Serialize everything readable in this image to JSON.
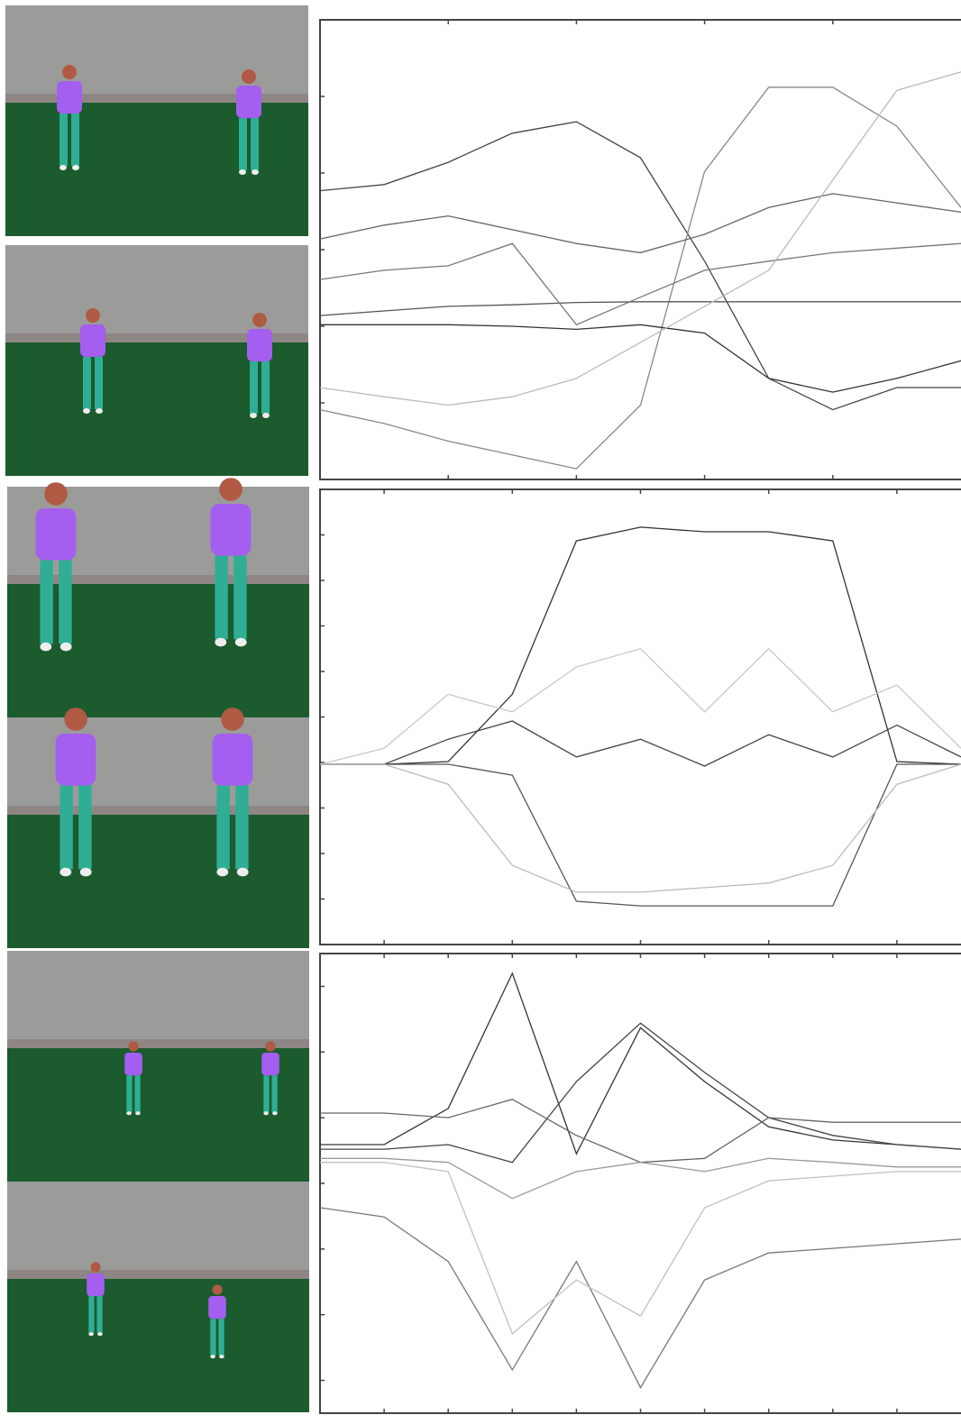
{
  "chart_data": [
    {
      "type": "line",
      "x": [
        0,
        10,
        20,
        30,
        40,
        50,
        60,
        70,
        80,
        90,
        100
      ],
      "xlim": [
        0,
        100
      ],
      "ylim": [
        -3,
        3
      ],
      "xticks": [
        20,
        40,
        60,
        80
      ],
      "yticks": [
        -2,
        -1,
        0,
        1,
        2
      ],
      "series": [
        {
          "color": "#444444",
          "values": [
            0.77,
            0.85,
            1.14,
            1.52,
            1.67,
            1.2,
            -0.15,
            -1.68,
            -2.09,
            -1.8,
            -1.8
          ]
        },
        {
          "color": "#888888",
          "values": [
            -2.09,
            -2.27,
            -2.5,
            -2.68,
            -2.86,
            -2.03,
            1.02,
            2.12,
            2.12,
            1.61,
            0.55
          ]
        },
        {
          "color": "#666666",
          "values": [
            0.14,
            0.32,
            0.44,
            0.26,
            0.08,
            -0.04,
            0.2,
            0.55,
            0.73,
            0.61,
            0.49
          ]
        },
        {
          "color": "#555555",
          "values": [
            -0.86,
            -0.8,
            -0.74,
            -0.72,
            -0.69,
            -0.68,
            -0.68,
            -0.68,
            -0.68,
            -0.68,
            -0.68
          ]
        },
        {
          "color": "#333333",
          "values": [
            -0.98,
            -0.98,
            -0.98,
            -1.0,
            -1.04,
            -0.98,
            -1.09,
            -1.68,
            -1.86,
            -1.68,
            -1.45
          ]
        },
        {
          "color": "#777777",
          "values": [
            -0.39,
            -0.27,
            -0.21,
            0.08,
            -0.98,
            -0.62,
            -0.27,
            -0.15,
            -0.04,
            0.02,
            0.08
          ]
        },
        {
          "color": "#bbbbbb",
          "values": [
            -1.8,
            -1.92,
            -2.03,
            -1.92,
            -1.68,
            -1.21,
            -0.74,
            -0.27,
            0.91,
            2.08,
            2.32
          ]
        }
      ]
    },
    {
      "type": "line",
      "x": [
        0,
        10,
        20,
        30,
        40,
        50,
        60,
        70,
        80,
        90,
        100
      ],
      "xlim": [
        0,
        100
      ],
      "ylim": [
        -5,
        5
      ],
      "xticks": [
        10,
        30,
        50,
        70,
        90
      ],
      "yticks": [
        -4,
        -3,
        -2,
        -1,
        0,
        1,
        2,
        3,
        4
      ],
      "series": [
        {
          "color": "#333333",
          "values": [
            -1.04,
            -1.04,
            -0.98,
            0.5,
            3.87,
            4.17,
            4.07,
            4.07,
            3.87,
            -0.98,
            -1.04
          ]
        },
        {
          "color": "#555555",
          "values": [
            -1.04,
            -1.04,
            -1.04,
            -1.28,
            -4.05,
            -4.15,
            -4.15,
            -4.15,
            -4.15,
            -1.04,
            -1.04
          ]
        },
        {
          "color": "#444444",
          "values": [
            -1.04,
            -1.04,
            -0.49,
            -0.09,
            -0.88,
            -0.49,
            -1.08,
            -0.39,
            -0.88,
            -0.18,
            -0.88
          ]
        },
        {
          "color": "#c8c8c8",
          "values": [
            -1.04,
            -0.69,
            0.5,
            0.11,
            1.1,
            1.5,
            0.11,
            1.5,
            0.11,
            0.7,
            -0.69
          ]
        },
        {
          "color": "#bbbbbb",
          "values": [
            -1.04,
            -1.04,
            -1.48,
            -3.26,
            -3.85,
            -3.85,
            -3.75,
            -3.65,
            -3.26,
            -1.48,
            -1.04
          ]
        }
      ]
    },
    {
      "type": "line",
      "x": [
        0,
        10,
        20,
        30,
        40,
        50,
        60,
        70,
        80,
        90,
        100
      ],
      "xlim": [
        0,
        100
      ],
      "ylim": [
        -3.5,
        3.5
      ],
      "xticks": [
        10,
        20,
        30,
        40,
        50,
        60,
        70,
        80,
        90
      ],
      "yticks": [
        -3,
        -2,
        -1,
        0,
        1,
        2,
        3
      ],
      "series": [
        {
          "color": "#333333",
          "values": [
            0.59,
            0.59,
            1.14,
            3.2,
            0.45,
            2.37,
            1.55,
            0.86,
            0.66,
            0.59,
            0.52
          ]
        },
        {
          "color": "#444444",
          "values": [
            0.52,
            0.52,
            0.59,
            0.32,
            1.55,
            2.44,
            1.69,
            1.0,
            0.73,
            0.59,
            0.52
          ]
        },
        {
          "color": "#777777",
          "values": [
            -0.37,
            -0.51,
            -1.19,
            -2.84,
            -1.19,
            -3.11,
            -1.47,
            -1.06,
            -0.99,
            -0.92,
            -0.85
          ]
        },
        {
          "color": "#c0c0c0",
          "values": [
            0.32,
            0.32,
            0.18,
            -2.29,
            -1.47,
            -2.02,
            -0.37,
            0.04,
            0.11,
            0.18,
            0.18
          ]
        },
        {
          "color": "#666666",
          "values": [
            1.07,
            1.07,
            1.0,
            1.28,
            0.73,
            0.32,
            0.38,
            1.0,
            0.93,
            0.93,
            0.93
          ]
        },
        {
          "color": "#999999",
          "values": [
            0.38,
            0.38,
            0.32,
            -0.23,
            0.18,
            0.32,
            0.18,
            0.38,
            0.32,
            0.25,
            0.25
          ]
        }
      ]
    }
  ]
}
